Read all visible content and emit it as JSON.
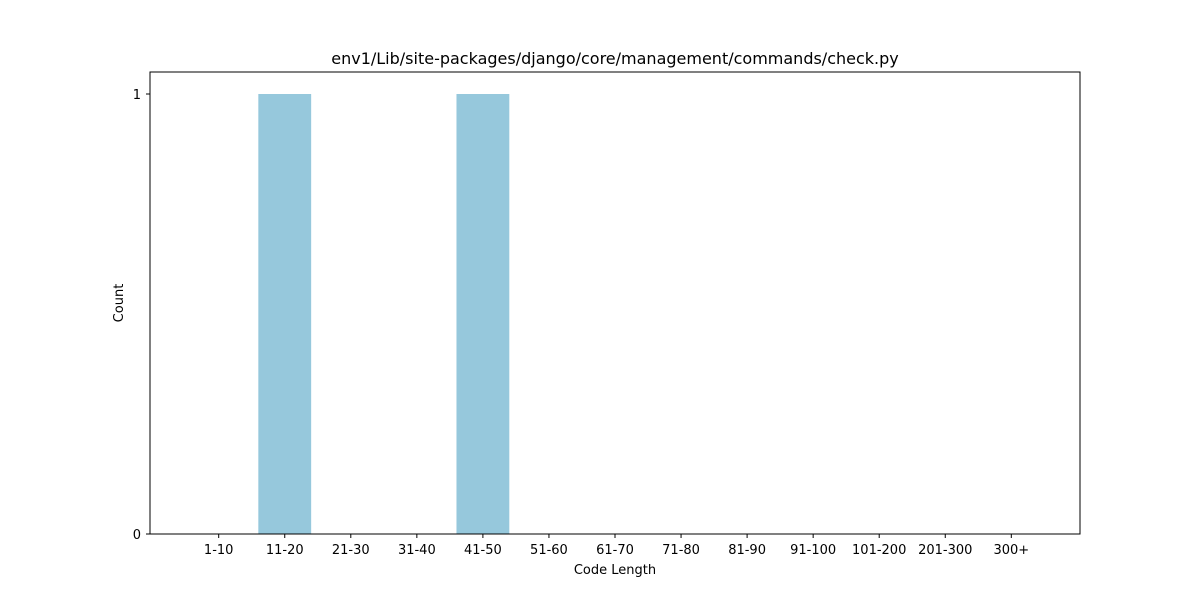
{
  "chart_data": {
    "type": "bar",
    "title": "env1/Lib/site-packages/django/core/management/commands/check.py",
    "xlabel": "Code Length",
    "ylabel": "Count",
    "categories": [
      "1-10",
      "11-20",
      "21-30",
      "31-40",
      "41-50",
      "51-60",
      "61-70",
      "71-80",
      "81-90",
      "91-100",
      "101-200",
      "201-300",
      "300+"
    ],
    "values": [
      0,
      1,
      0,
      0,
      1,
      0,
      0,
      0,
      0,
      0,
      0,
      0,
      0
    ],
    "ylim": [
      0,
      1
    ],
    "yticks": [
      0,
      1
    ],
    "grid": false,
    "legend": "none",
    "bar_color": "#96c8dc"
  }
}
